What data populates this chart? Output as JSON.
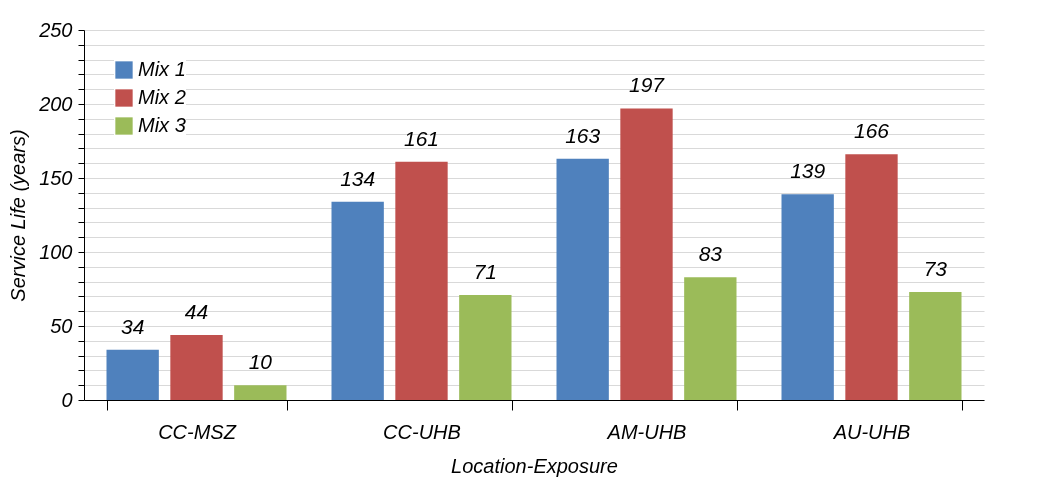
{
  "chart_data": {
    "type": "bar",
    "xlabel": "Location-Exposure",
    "ylabel": "Service Life (years)",
    "categories": [
      "CC-MSZ",
      "CC-UHB",
      "AM-UHB",
      "AU-UHB"
    ],
    "series": [
      {
        "name": "Mix 1",
        "color": "#4f81bd",
        "values": [
          34,
          134,
          163,
          139
        ]
      },
      {
        "name": "Mix 2",
        "color": "#c0504d",
        "values": [
          44,
          161,
          197,
          166
        ]
      },
      {
        "name": "Mix 3",
        "color": "#9bbb59",
        "values": [
          10,
          71,
          83,
          73
        ]
      }
    ],
    "ylim": [
      0,
      250
    ],
    "yticks": [
      0,
      {
        "value": 10,
        "label": null
      },
      {
        "value": 20,
        "label": null
      },
      {
        "value": 30,
        "label": null
      },
      {
        "value": 40,
        "label": null
      },
      50,
      {
        "value": 60,
        "label": null
      },
      {
        "value": 70,
        "label": null
      },
      {
        "value": 80,
        "label": null
      },
      {
        "value": 90,
        "label": null
      },
      100,
      {
        "value": 110,
        "label": null
      },
      {
        "value": 120,
        "label": null
      },
      {
        "value": 130,
        "label": null
      },
      {
        "value": 140,
        "label": null
      },
      150,
      {
        "value": 160,
        "label": null
      },
      {
        "value": 170,
        "label": null
      },
      {
        "value": 180,
        "label": null
      },
      {
        "value": 190,
        "label": null
      },
      200,
      {
        "value": 210,
        "label": null
      },
      {
        "value": 220,
        "label": null
      },
      {
        "value": 230,
        "label": null
      },
      {
        "value": 240,
        "label": null
      },
      250
    ],
    "grid": "y",
    "legend": "top left",
    "data_labels": true
  }
}
